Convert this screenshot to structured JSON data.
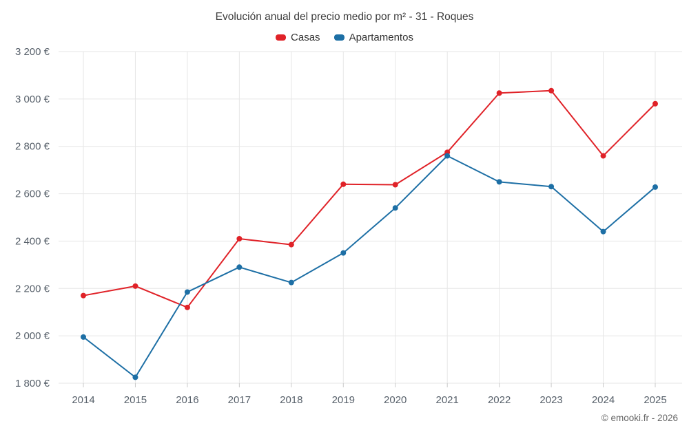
{
  "chart": {
    "title": "Evolución anual del precio medio por m² - 31 - Roques",
    "footer": "© emooki.fr - 2026"
  },
  "chart_data": {
    "type": "line",
    "title": "Evolución anual del precio medio por m² - 31 - Roques",
    "categories": [
      "2014",
      "2015",
      "2016",
      "2017",
      "2018",
      "2019",
      "2020",
      "2021",
      "2022",
      "2023",
      "2024",
      "2025"
    ],
    "series": [
      {
        "name": "Casas",
        "color": "#e02228",
        "values": [
          2170,
          2210,
          2120,
          2410,
          2385,
          2640,
          2638,
          2775,
          3025,
          3035,
          2760,
          2980
        ]
      },
      {
        "name": "Apartamentos",
        "color": "#1d6fa5",
        "values": [
          1995,
          1825,
          2185,
          2290,
          2225,
          2350,
          2540,
          2760,
          2650,
          2630,
          2440,
          2628
        ]
      }
    ],
    "ylim": [
      1800,
      3200
    ],
    "ytick_step": 200,
    "ytick_suffix": " €",
    "grid": true,
    "legend_position": "top",
    "grid_color": "#e6e6e6",
    "tick_color": "#c9c9c9"
  }
}
